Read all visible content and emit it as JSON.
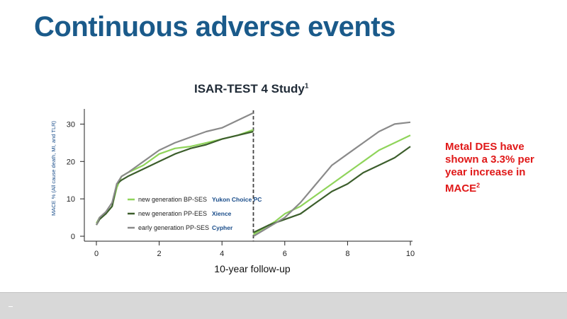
{
  "slide": {
    "title": "Continuous adverse events",
    "chart_title": "ISAR-TEST 4 Study",
    "chart_title_sup": "1",
    "note_text": "Metal DES have shown a 3.3% per year increase in MACE",
    "note_sup": "2"
  },
  "colors": {
    "title": "#1a5a8a",
    "bp_ses": "#8fd45a",
    "pp_ees": "#3c5e2c",
    "pp_ses": "#8a8a8a",
    "brand_label": "#1a4d8a",
    "note": "#e01818"
  },
  "chart_data": {
    "type": "line",
    "title": "ISAR-TEST 4 Study",
    "xlabel": "10-year follow-up",
    "ylabel": "MACE % (All cause death, MI, and TLR)",
    "xlim": [
      0,
      10
    ],
    "ylim": [
      0,
      35
    ],
    "x_ticks": [
      0,
      2,
      4,
      6,
      8,
      10
    ],
    "y_ticks": [
      0,
      10,
      20,
      30
    ],
    "vertical_marker_x": 5,
    "legend": {
      "placement": "bottom-left"
    },
    "series": [
      {
        "name": "new generation BP-SES",
        "brand": "Yukon Choice PC",
        "color": "#8fd45a",
        "segments": [
          {
            "x": [
              0,
              0.1,
              0.3,
              0.5,
              0.65,
              0.8,
              1.0,
              1.5,
              2.0,
              2.5,
              3.0,
              3.5,
              4.0,
              4.5,
              5.0
            ],
            "y": [
              3.5,
              5,
              6,
              8,
              13,
              16,
              17,
              19,
              22,
              23.5,
              24,
              25,
              26,
              27,
              28.5
            ]
          },
          {
            "x": [
              5.0,
              5.3,
              5.7,
              6.0,
              6.5,
              7.0,
              7.5,
              8.0,
              8.5,
              9.0,
              9.5,
              10.0
            ],
            "y": [
              0.5,
              2,
              4,
              6,
              8,
              11,
              14,
              17,
              20,
              23,
              25,
              27
            ]
          }
        ]
      },
      {
        "name": "new generation PP-EES",
        "brand": "Xience",
        "color": "#3c5e2c",
        "segments": [
          {
            "x": [
              0,
              0.1,
              0.3,
              0.5,
              0.65,
              0.8,
              1.0,
              1.5,
              2.0,
              2.5,
              3.0,
              3.5,
              4.0,
              4.5,
              5.0
            ],
            "y": [
              3,
              4.5,
              6,
              8,
              14,
              15,
              16,
              18,
              20,
              22,
              23.5,
              24.5,
              26,
              27,
              28
            ]
          },
          {
            "x": [
              5.0,
              5.5,
              6.0,
              6.5,
              7.0,
              7.5,
              8.0,
              8.5,
              9.0,
              9.5,
              10.0
            ],
            "y": [
              1,
              3,
              4.5,
              6,
              9,
              12,
              14,
              17,
              19,
              21,
              24
            ]
          }
        ]
      },
      {
        "name": "early generation PP-SES",
        "brand": "Cypher",
        "color": "#8a8a8a",
        "segments": [
          {
            "x": [
              0,
              0.1,
              0.3,
              0.5,
              0.65,
              0.8,
              1.0,
              1.5,
              2.0,
              2.5,
              3.0,
              3.5,
              4.0,
              4.5,
              5.0
            ],
            "y": [
              3,
              5,
              6.5,
              9,
              14,
              16,
              17,
              20,
              23,
              25,
              26.5,
              28,
              29,
              31,
              33
            ]
          },
          {
            "x": [
              5.0,
              5.5,
              6.0,
              6.5,
              7.0,
              7.5,
              8.0,
              8.5,
              9.0,
              9.5,
              10.0
            ],
            "y": [
              0,
              2.5,
              5,
              9,
              14,
              19,
              22,
              25,
              28,
              30,
              30.5
            ]
          }
        ]
      }
    ]
  }
}
